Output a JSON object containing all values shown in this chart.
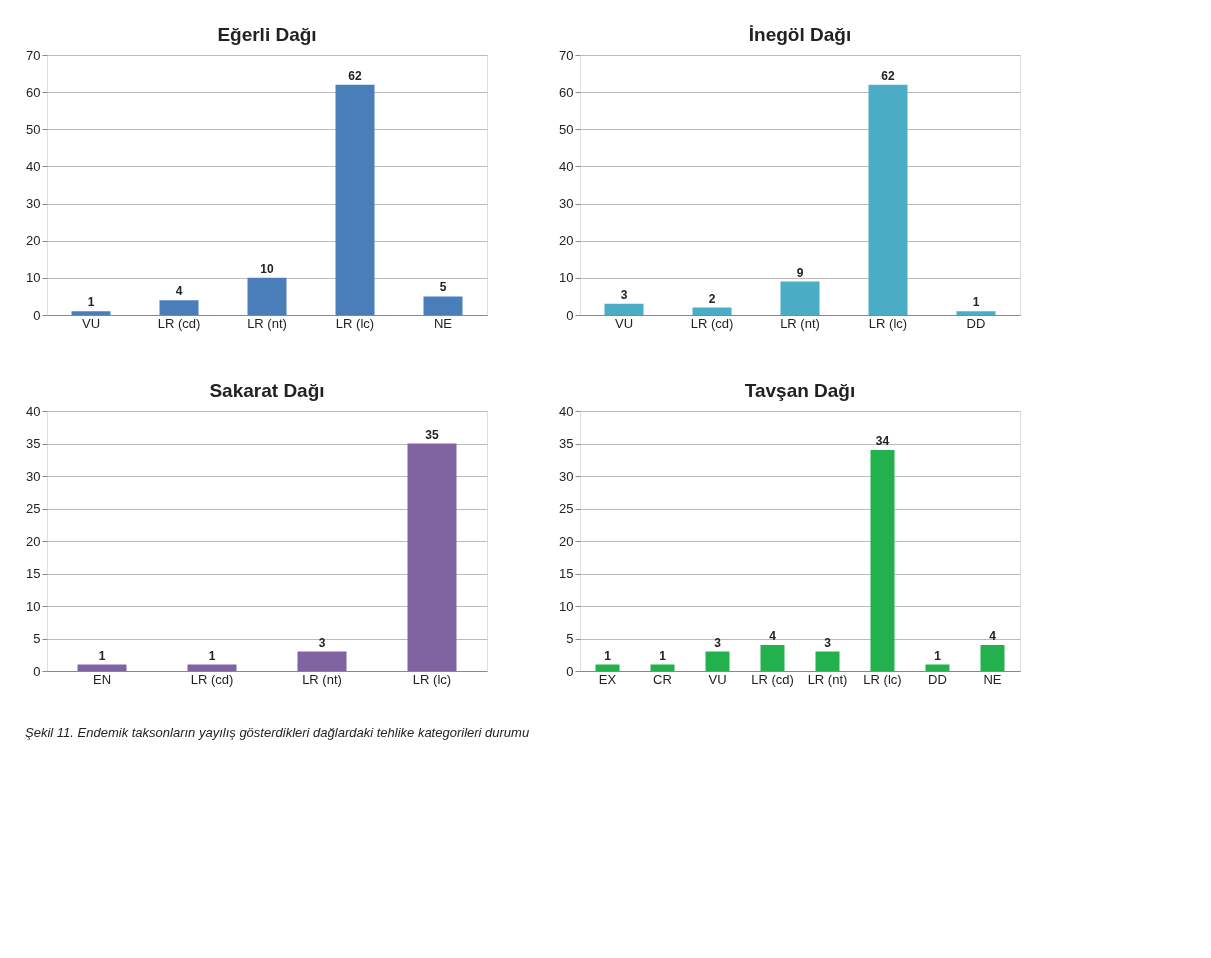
{
  "chart_data": [
    {
      "type": "bar",
      "title": "Eğerli Dağı",
      "categories": [
        "VU",
        "LR (cd)",
        "LR (nt)",
        "LR (lc)",
        "NE"
      ],
      "values": [
        1,
        4,
        10,
        62,
        5
      ],
      "color": "#4a7ebb",
      "ylim": [
        0,
        70
      ],
      "yticks": [
        0,
        10,
        20,
        30,
        40,
        50,
        60,
        70
      ],
      "grid": "y",
      "data_labels": true
    },
    {
      "type": "bar",
      "title": "İnegöl Dağı",
      "categories": [
        "VU",
        "LR (cd)",
        "LR (nt)",
        "LR (lc)",
        "DD"
      ],
      "values": [
        3,
        2,
        9,
        62,
        1
      ],
      "color": "#4bacc6",
      "ylim": [
        0,
        70
      ],
      "yticks": [
        0,
        10,
        20,
        30,
        40,
        50,
        60,
        70
      ],
      "grid": "y",
      "data_labels": true
    },
    {
      "type": "bar",
      "title": "Sakarat Dağı",
      "categories": [
        "EN",
        "LR (cd)",
        "LR (nt)",
        "LR (lc)"
      ],
      "values": [
        1,
        1,
        3,
        35
      ],
      "color": "#8064a2",
      "ylim": [
        0,
        40
      ],
      "yticks": [
        0,
        5,
        10,
        15,
        20,
        25,
        30,
        35,
        40
      ],
      "grid": "y",
      "data_labels": true
    },
    {
      "type": "bar",
      "title": "Tavşan Dağı",
      "categories": [
        "EX",
        "CR",
        "VU",
        "LR (cd)",
        "LR (nt)",
        "LR (lc)",
        "DD",
        "NE"
      ],
      "values": [
        1,
        1,
        3,
        4,
        3,
        34,
        1,
        4
      ],
      "color": "#22b14c",
      "ylim": [
        0,
        40
      ],
      "yticks": [
        0,
        5,
        10,
        15,
        20,
        25,
        30,
        35,
        40
      ],
      "grid": "y",
      "data_labels": true,
      "annotations": [
        "Şekil 11. Endemik taksonların yayılış gösterdikleri dağlardaki tehlike kategorileri durumu"
      ]
    }
  ]
}
